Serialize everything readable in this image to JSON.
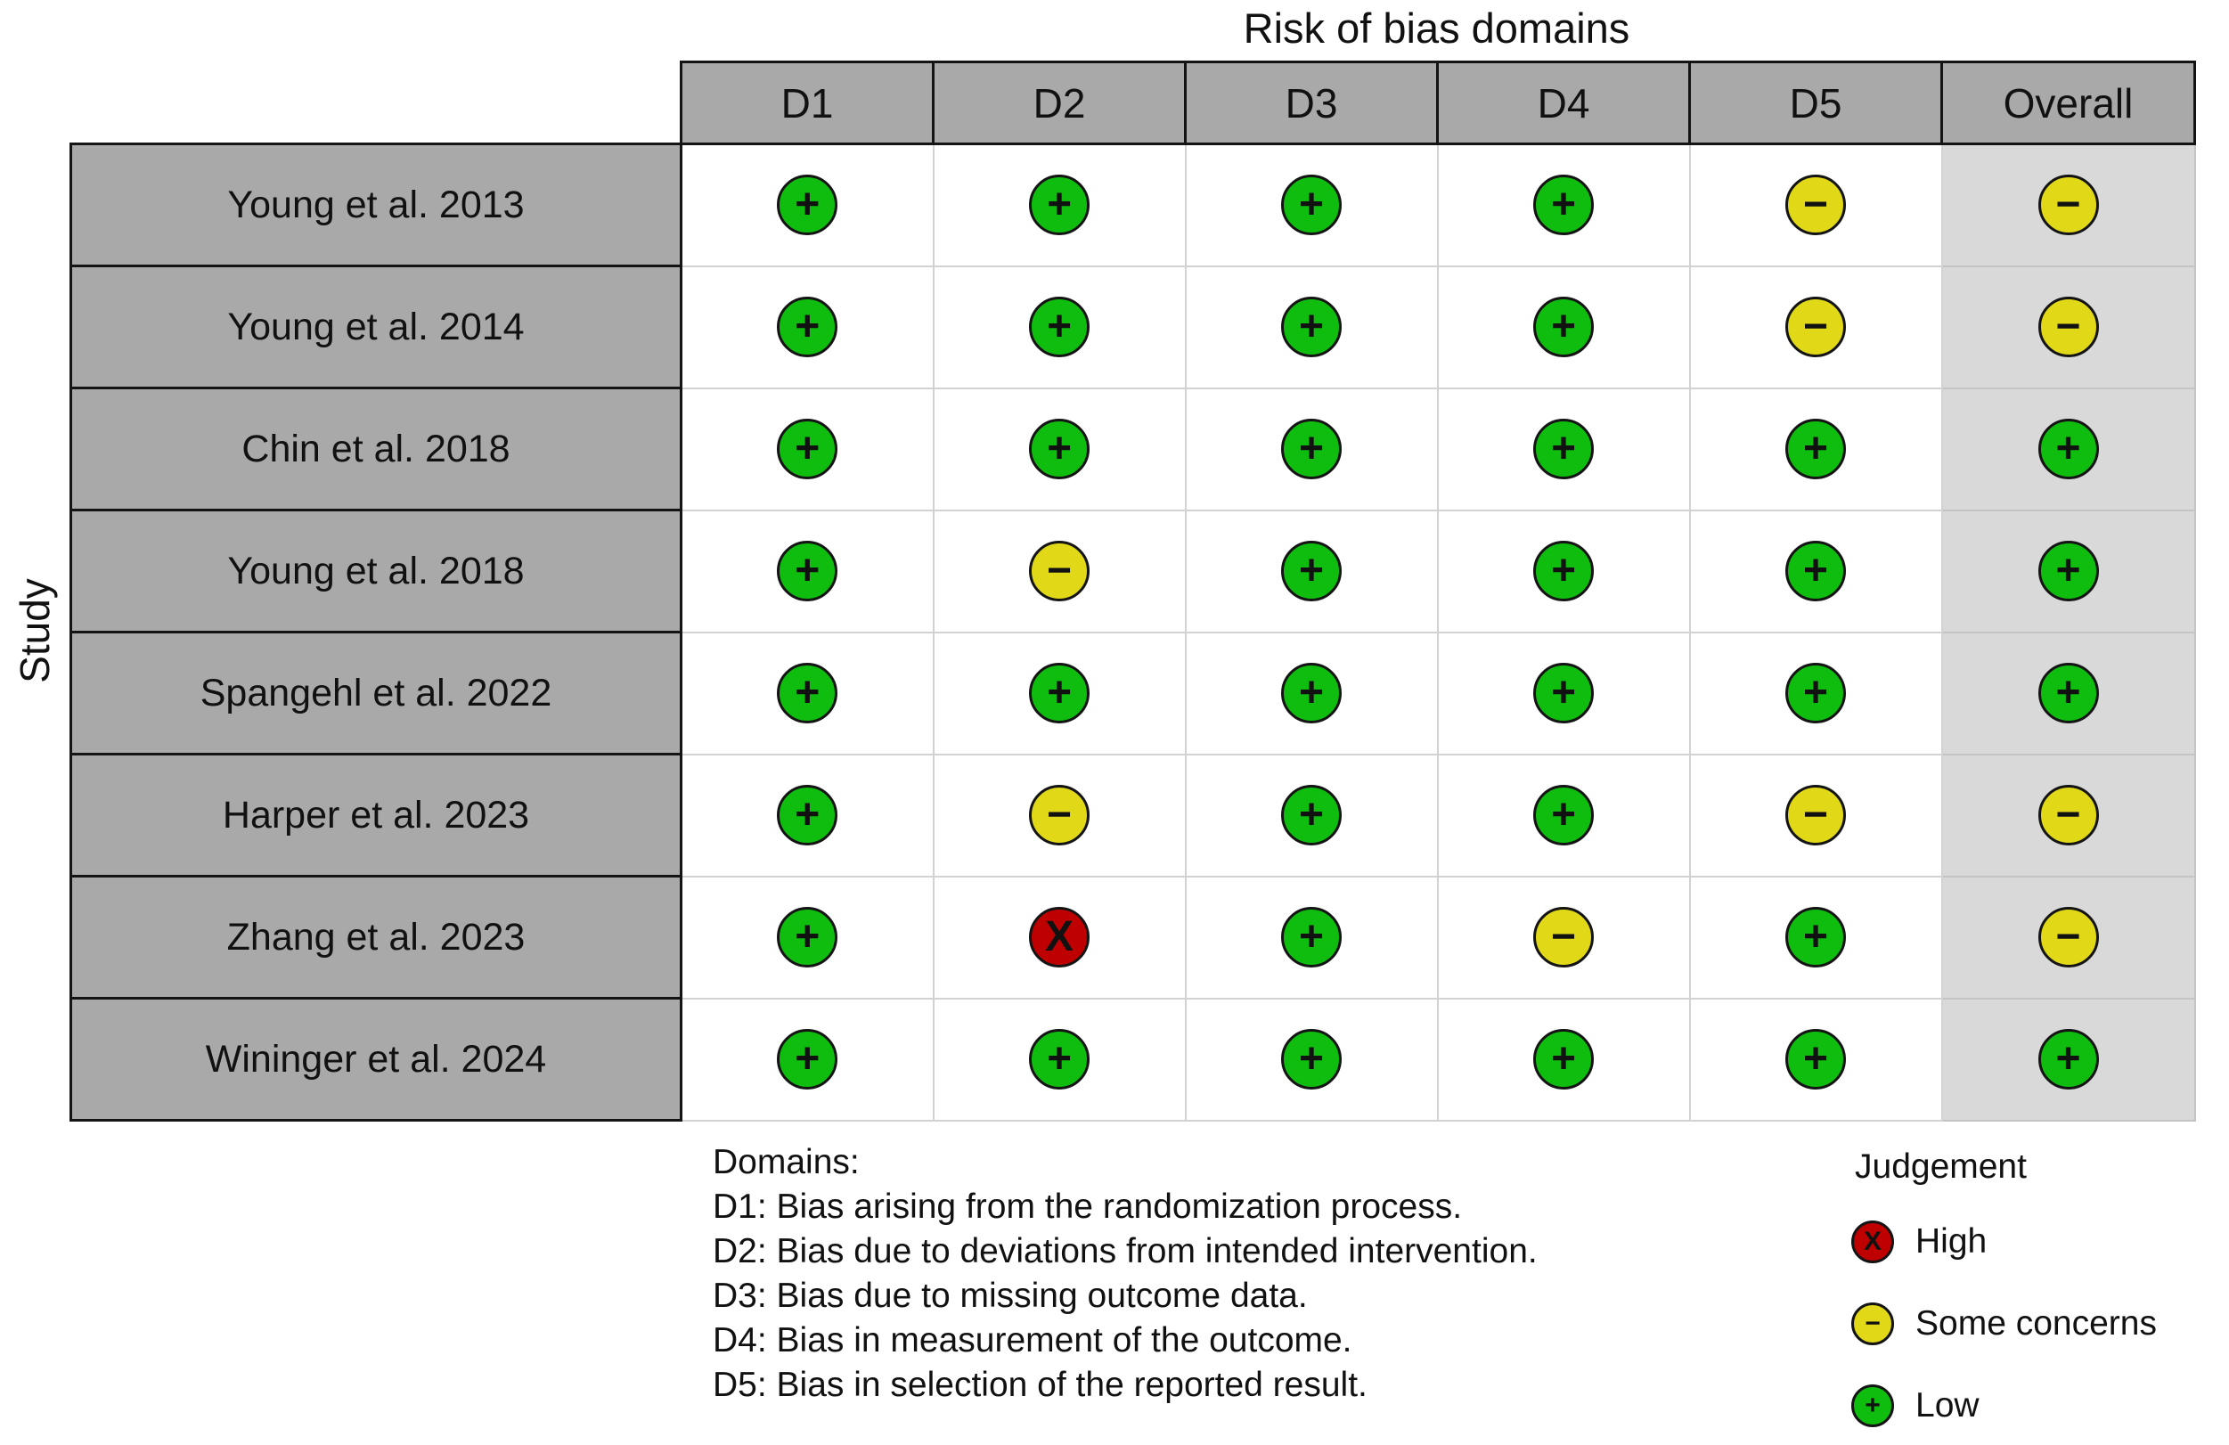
{
  "chart_data": {
    "type": "heatmap",
    "title": "Risk of bias domains",
    "ylabel": "Study",
    "columns": [
      "D1",
      "D2",
      "D3",
      "D4",
      "D5",
      "Overall"
    ],
    "studies": [
      "Young et al. 2013",
      "Young et al. 2014",
      "Chin et al. 2018",
      "Young et al. 2018",
      "Spangehl et al. 2022",
      "Harper et al. 2023",
      "Zhang et al. 2023",
      "Wininger et al. 2024"
    ],
    "judgements": [
      [
        "low",
        "low",
        "low",
        "low",
        "some_concerns",
        "some_concerns"
      ],
      [
        "low",
        "low",
        "low",
        "low",
        "some_concerns",
        "some_concerns"
      ],
      [
        "low",
        "low",
        "low",
        "low",
        "low",
        "low"
      ],
      [
        "low",
        "some_concerns",
        "low",
        "low",
        "low",
        "low"
      ],
      [
        "low",
        "low",
        "low",
        "low",
        "low",
        "low"
      ],
      [
        "low",
        "some_concerns",
        "low",
        "low",
        "some_concerns",
        "some_concerns"
      ],
      [
        "low",
        "high",
        "low",
        "some_concerns",
        "low",
        "some_concerns"
      ],
      [
        "low",
        "low",
        "low",
        "low",
        "low",
        "low"
      ]
    ],
    "symbols": {
      "high": "X",
      "some_concerns": "−",
      "low": "+"
    },
    "colors": {
      "high": "#bf0000",
      "some_concerns": "#e1d917",
      "low": "#0fbd0f"
    },
    "grid": true,
    "legend_position": "bottom-right",
    "legend_title": "Judgement",
    "legend_items": [
      {
        "judgement": "high",
        "label": "High"
      },
      {
        "judgement": "some_concerns",
        "label": "Some concerns"
      },
      {
        "judgement": "low",
        "label": "Low"
      }
    ],
    "footnote_heading": "Domains:",
    "footnotes": [
      "D1: Bias arising from the randomization process.",
      "D2: Bias due to deviations from intended intervention.",
      "D3: Bias due to missing outcome data.",
      "D4: Bias in measurement of the outcome.",
      "D5: Bias in selection of the reported result."
    ]
  }
}
